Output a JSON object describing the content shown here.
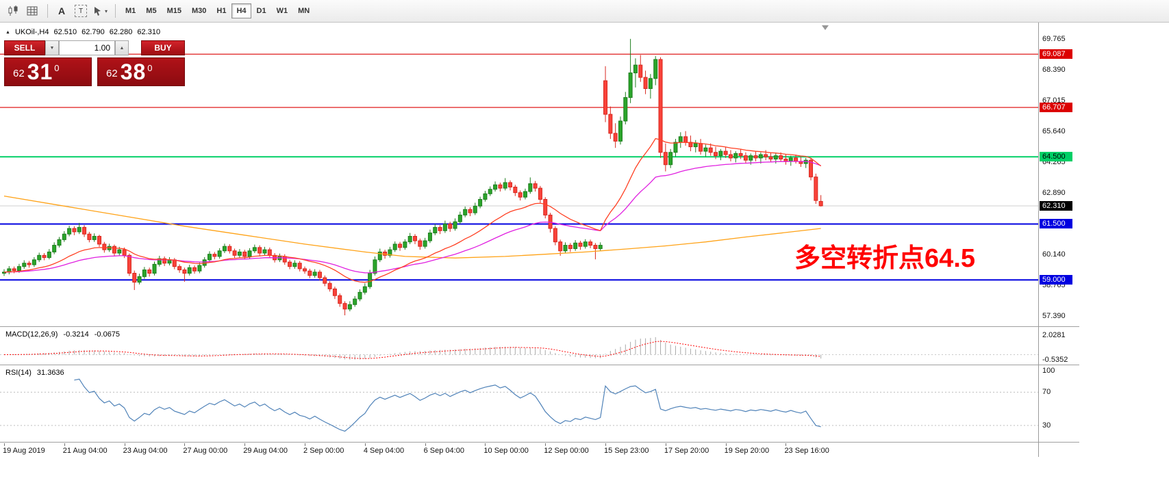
{
  "toolbar": {
    "icons": [
      "chart-type-icon",
      "grid-icon",
      "text-annotation-icon",
      "text-box-icon",
      "cursor-tools-icon"
    ],
    "icon_a": "A",
    "icon_t": "T",
    "cursor_caret": "▾",
    "timeframes": [
      "M1",
      "M5",
      "M15",
      "M30",
      "H1",
      "H4",
      "D1",
      "W1",
      "MN"
    ],
    "active_timeframe": "H4"
  },
  "chart": {
    "symbol_header": "UKOil-,H4",
    "symbol_marker": "▲",
    "ohlc": {
      "open": "62.510",
      "high": "62.790",
      "low": "62.280",
      "close": "62.310"
    },
    "annotation": "多空转折点64.5",
    "trade_panel": {
      "sell_label": "SELL",
      "buy_label": "BUY",
      "volume": "1.00",
      "volume_down_glyph": "▼",
      "volume_up_glyph": "▲",
      "sell_price_small": "62",
      "sell_price_big": "31",
      "sell_price_sup": "0",
      "buy_price_small": "62",
      "buy_price_big": "38",
      "buy_price_sup": "0"
    }
  },
  "indicators_text": {
    "macd_label": "MACD(12,26,9)",
    "macd_value_main": "-0.3214",
    "macd_value_signal": "-0.0675",
    "rsi_label": "RSI(14)",
    "rsi_value": "31.3636"
  },
  "chart_data": {
    "type": "candlestick",
    "symbol": "UKOil-",
    "timeframe": "H4",
    "colors": {
      "up": "#2aa52a",
      "up_border": "#1e7e1e",
      "down": "#f9423a",
      "down_border": "#d8281e"
    },
    "price_axis": {
      "ticks": [
        69.765,
        68.39,
        67.015,
        65.64,
        64.265,
        62.89,
        61.515,
        60.14,
        58.765,
        57.39
      ],
      "decimals": 3
    },
    "levels": [
      {
        "price": 69.087,
        "color": "#dc0000",
        "width": 1.2,
        "label": "69.087",
        "label_bg": "#dc0000",
        "label_fg": "#ffffff"
      },
      {
        "price": 66.707,
        "color": "#dc0000",
        "width": 1.2,
        "label": "66.707",
        "label_bg": "#dc0000",
        "label_fg": "#ffffff"
      },
      {
        "price": 64.5,
        "color": "#00cf66",
        "width": 2,
        "label": "64.500",
        "label_bg": "#00cf66",
        "label_fg": "#000000"
      },
      {
        "price": 61.5,
        "color": "#0000e0",
        "width": 2,
        "label": "61.500",
        "label_bg": "#0000e0",
        "label_fg": "#ffffff"
      },
      {
        "price": 59.0,
        "color": "#0000e0",
        "width": 2,
        "label": "59.000",
        "label_bg": "#0000e0",
        "label_fg": "#ffffff"
      }
    ],
    "current_price": {
      "value": 62.31,
      "label": "62.310",
      "label_bg": "#000000",
      "label_fg": "#ffffff"
    },
    "moving_averages": [
      {
        "name": "slow-ma-orange",
        "method": "points",
        "color": "#ffa216",
        "points": [
          [
            0,
            62.75
          ],
          [
            12,
            62.3
          ],
          [
            24,
            61.85
          ],
          [
            36,
            61.4
          ],
          [
            48,
            61.0
          ],
          [
            60,
            60.6
          ],
          [
            72,
            60.25
          ],
          [
            80,
            60.05
          ],
          [
            90,
            59.98
          ],
          [
            100,
            60.05
          ],
          [
            108,
            60.15
          ],
          [
            116,
            60.25
          ],
          [
            124,
            60.38
          ],
          [
            132,
            60.52
          ],
          [
            140,
            60.7
          ],
          [
            148,
            60.92
          ],
          [
            156,
            61.12
          ],
          [
            163,
            61.3
          ]
        ]
      },
      {
        "name": "medium-ma-magenta",
        "method": "ema",
        "period": 45,
        "color": "#e01fe0"
      },
      {
        "name": "fast-ma-red",
        "method": "ema",
        "period": 21,
        "color": "#ff4023"
      }
    ],
    "candles": [
      [
        59.3,
        59.48,
        59.18,
        59.35
      ],
      [
        59.35,
        59.62,
        59.25,
        59.5
      ],
      [
        59.5,
        59.6,
        59.3,
        59.42
      ],
      [
        59.42,
        59.72,
        59.32,
        59.6
      ],
      [
        59.6,
        59.88,
        59.5,
        59.75
      ],
      [
        59.75,
        59.85,
        59.55,
        59.68
      ],
      [
        59.68,
        60.02,
        59.58,
        59.9
      ],
      [
        59.9,
        60.22,
        59.8,
        60.1
      ],
      [
        60.1,
        60.2,
        59.88,
        60.0
      ],
      [
        60.0,
        60.38,
        59.92,
        60.25
      ],
      [
        60.25,
        60.68,
        60.15,
        60.55
      ],
      [
        60.55,
        60.92,
        60.45,
        60.8
      ],
      [
        60.8,
        61.18,
        60.7,
        61.05
      ],
      [
        61.05,
        61.42,
        60.95,
        61.3
      ],
      [
        61.3,
        61.4,
        61.0,
        61.15
      ],
      [
        61.15,
        61.55,
        61.05,
        61.35
      ],
      [
        61.35,
        61.45,
        60.92,
        61.05
      ],
      [
        61.05,
        61.15,
        60.68,
        60.8
      ],
      [
        60.8,
        61.08,
        60.7,
        60.95
      ],
      [
        60.95,
        61.02,
        60.48,
        60.6
      ],
      [
        60.6,
        60.7,
        60.22,
        60.35
      ],
      [
        60.35,
        60.62,
        60.25,
        60.5
      ],
      [
        60.5,
        60.58,
        60.08,
        60.2
      ],
      [
        60.2,
        60.48,
        60.1,
        60.35
      ],
      [
        60.35,
        60.45,
        59.98,
        60.1
      ],
      [
        60.1,
        60.18,
        59.18,
        59.3
      ],
      [
        59.3,
        59.42,
        58.55,
        58.9
      ],
      [
        58.9,
        59.28,
        58.8,
        59.15
      ],
      [
        59.15,
        59.58,
        59.05,
        59.45
      ],
      [
        59.45,
        59.55,
        59.15,
        59.3
      ],
      [
        59.3,
        59.82,
        59.2,
        59.7
      ],
      [
        59.7,
        60.08,
        59.6,
        59.95
      ],
      [
        59.95,
        60.05,
        59.62,
        59.75
      ],
      [
        59.75,
        60.02,
        59.65,
        59.9
      ],
      [
        59.9,
        59.98,
        59.48,
        59.6
      ],
      [
        59.6,
        59.7,
        59.32,
        59.45
      ],
      [
        59.45,
        59.55,
        58.92,
        59.3
      ],
      [
        59.3,
        59.68,
        59.2,
        59.55
      ],
      [
        59.55,
        59.65,
        59.28,
        59.4
      ],
      [
        59.4,
        59.78,
        59.3,
        59.65
      ],
      [
        59.65,
        60.02,
        59.55,
        59.9
      ],
      [
        59.9,
        60.28,
        59.8,
        60.15
      ],
      [
        60.15,
        60.25,
        59.92,
        60.05
      ],
      [
        60.05,
        60.42,
        59.95,
        60.3
      ],
      [
        60.3,
        60.62,
        60.2,
        60.5
      ],
      [
        60.5,
        60.6,
        60.18,
        60.3
      ],
      [
        60.3,
        60.4,
        59.98,
        60.1
      ],
      [
        60.1,
        60.38,
        60.0,
        60.25
      ],
      [
        60.25,
        60.35,
        59.92,
        60.05
      ],
      [
        60.05,
        60.42,
        59.95,
        60.3
      ],
      [
        60.3,
        60.58,
        60.2,
        60.45
      ],
      [
        60.45,
        60.55,
        60.08,
        60.2
      ],
      [
        60.2,
        60.48,
        60.1,
        60.35
      ],
      [
        60.35,
        60.45,
        59.98,
        60.1
      ],
      [
        60.1,
        60.2,
        59.78,
        59.9
      ],
      [
        59.9,
        60.18,
        59.8,
        60.05
      ],
      [
        60.05,
        60.15,
        59.68,
        59.8
      ],
      [
        59.8,
        59.9,
        59.48,
        59.6
      ],
      [
        59.6,
        59.88,
        59.5,
        59.75
      ],
      [
        59.75,
        59.85,
        59.38,
        59.5
      ],
      [
        59.5,
        59.6,
        59.28,
        59.4
      ],
      [
        59.4,
        59.5,
        59.08,
        59.2
      ],
      [
        59.2,
        59.48,
        59.1,
        59.35
      ],
      [
        59.35,
        59.45,
        58.98,
        59.1
      ],
      [
        59.1,
        59.2,
        58.72,
        58.85
      ],
      [
        58.85,
        58.95,
        58.48,
        58.6
      ],
      [
        58.6,
        58.7,
        58.15,
        58.3
      ],
      [
        58.3,
        58.4,
        57.8,
        57.95
      ],
      [
        57.95,
        58.05,
        57.42,
        57.7
      ],
      [
        57.7,
        58.05,
        57.6,
        57.9
      ],
      [
        57.9,
        58.28,
        57.8,
        58.15
      ],
      [
        58.15,
        58.58,
        58.05,
        58.45
      ],
      [
        58.45,
        58.85,
        58.35,
        58.7
      ],
      [
        58.7,
        59.45,
        58.6,
        59.3
      ],
      [
        59.3,
        60.05,
        59.2,
        59.9
      ],
      [
        59.9,
        60.4,
        59.8,
        60.25
      ],
      [
        60.25,
        60.35,
        59.95,
        60.1
      ],
      [
        60.1,
        60.48,
        60.0,
        60.35
      ],
      [
        60.35,
        60.72,
        60.25,
        60.6
      ],
      [
        60.6,
        60.7,
        60.3,
        60.45
      ],
      [
        60.45,
        60.82,
        60.35,
        60.7
      ],
      [
        60.7,
        61.1,
        60.6,
        60.95
      ],
      [
        60.95,
        61.05,
        60.6,
        60.75
      ],
      [
        60.75,
        60.85,
        60.35,
        60.5
      ],
      [
        60.5,
        60.88,
        60.4,
        60.75
      ],
      [
        60.75,
        61.25,
        60.65,
        61.1
      ],
      [
        61.1,
        61.5,
        61.0,
        61.35
      ],
      [
        61.35,
        61.45,
        61.05,
        61.2
      ],
      [
        61.2,
        61.65,
        61.1,
        61.5
      ],
      [
        61.5,
        61.6,
        61.15,
        61.3
      ],
      [
        61.3,
        61.75,
        61.2,
        61.6
      ],
      [
        61.6,
        62.05,
        61.5,
        61.9
      ],
      [
        61.9,
        62.28,
        61.8,
        62.15
      ],
      [
        62.15,
        62.25,
        61.85,
        62.0
      ],
      [
        62.0,
        62.45,
        61.9,
        62.3
      ],
      [
        62.3,
        62.72,
        62.2,
        62.6
      ],
      [
        62.6,
        62.98,
        62.5,
        62.85
      ],
      [
        62.85,
        63.18,
        62.75,
        63.05
      ],
      [
        63.05,
        63.4,
        62.95,
        63.25
      ],
      [
        63.25,
        63.35,
        62.95,
        63.1
      ],
      [
        63.1,
        63.55,
        63.0,
        63.35
      ],
      [
        63.35,
        63.45,
        63.0,
        63.15
      ],
      [
        63.15,
        63.25,
        62.75,
        62.9
      ],
      [
        62.9,
        63.0,
        62.55,
        62.7
      ],
      [
        62.7,
        63.08,
        62.6,
        62.95
      ],
      [
        62.95,
        63.58,
        62.85,
        63.3
      ],
      [
        63.3,
        63.42,
        62.95,
        63.1
      ],
      [
        63.1,
        63.2,
        62.45,
        62.6
      ],
      [
        62.6,
        62.7,
        61.75,
        61.9
      ],
      [
        61.9,
        62.0,
        61.12,
        61.3
      ],
      [
        61.3,
        61.4,
        60.55,
        60.7
      ],
      [
        60.7,
        60.8,
        60.08,
        60.3
      ],
      [
        60.3,
        60.68,
        60.2,
        60.55
      ],
      [
        60.55,
        60.65,
        60.25,
        60.4
      ],
      [
        60.4,
        60.78,
        60.3,
        60.65
      ],
      [
        60.65,
        60.75,
        60.35,
        60.5
      ],
      [
        60.5,
        60.82,
        60.4,
        60.7
      ],
      [
        60.7,
        60.8,
        60.42,
        60.55
      ],
      [
        60.55,
        60.65,
        59.92,
        60.4
      ],
      [
        60.4,
        60.68,
        60.3,
        60.55
      ],
      [
        67.9,
        68.55,
        66.05,
        66.4
      ],
      [
        66.4,
        66.75,
        65.3,
        65.55
      ],
      [
        65.55,
        66.0,
        64.9,
        65.2
      ],
      [
        65.2,
        66.3,
        65.05,
        66.1
      ],
      [
        66.1,
        67.4,
        65.95,
        67.15
      ],
      [
        67.15,
        69.77,
        66.9,
        68.25
      ],
      [
        68.25,
        68.9,
        67.6,
        68.6
      ],
      [
        68.6,
        69.05,
        67.85,
        68.05
      ],
      [
        68.05,
        68.35,
        67.3,
        67.55
      ],
      [
        67.55,
        68.2,
        67.1,
        68.0
      ],
      [
        68.0,
        69.0,
        67.7,
        68.85
      ],
      [
        68.85,
        68.95,
        64.45,
        64.7
      ],
      [
        64.7,
        65.1,
        63.85,
        64.15
      ],
      [
        64.15,
        64.85,
        64.0,
        64.7
      ],
      [
        64.7,
        65.3,
        64.5,
        65.15
      ],
      [
        65.15,
        65.6,
        64.9,
        65.4
      ],
      [
        65.4,
        65.65,
        65.0,
        65.15
      ],
      [
        65.15,
        65.45,
        64.75,
        64.95
      ],
      [
        64.95,
        65.25,
        64.7,
        65.1
      ],
      [
        65.1,
        65.3,
        64.6,
        64.75
      ],
      [
        64.75,
        65.05,
        64.5,
        64.9
      ],
      [
        64.9,
        65.1,
        64.55,
        64.7
      ],
      [
        64.7,
        64.95,
        64.4,
        64.55
      ],
      [
        64.55,
        64.85,
        64.35,
        64.75
      ],
      [
        64.75,
        64.95,
        64.45,
        64.6
      ],
      [
        64.6,
        64.8,
        64.3,
        64.45
      ],
      [
        64.45,
        64.75,
        64.25,
        64.65
      ],
      [
        64.65,
        64.85,
        64.4,
        64.55
      ],
      [
        64.55,
        64.7,
        64.2,
        64.35
      ],
      [
        64.35,
        64.65,
        64.15,
        64.55
      ],
      [
        64.55,
        64.75,
        64.3,
        64.45
      ],
      [
        64.45,
        64.7,
        64.2,
        64.6
      ],
      [
        64.6,
        64.8,
        64.35,
        64.5
      ],
      [
        64.5,
        64.7,
        64.25,
        64.4
      ],
      [
        64.4,
        64.65,
        64.2,
        64.55
      ],
      [
        64.55,
        64.7,
        64.3,
        64.4
      ],
      [
        64.4,
        64.6,
        64.15,
        64.3
      ],
      [
        64.3,
        64.55,
        64.1,
        64.45
      ],
      [
        64.45,
        64.6,
        64.2,
        64.3
      ],
      [
        64.3,
        64.5,
        64.05,
        64.2
      ],
      [
        64.2,
        64.45,
        64.0,
        64.35
      ],
      [
        64.35,
        64.45,
        63.45,
        63.6
      ],
      [
        63.6,
        63.75,
        62.4,
        62.55
      ],
      [
        62.51,
        62.79,
        62.28,
        62.31
      ]
    ],
    "time_labels": [
      {
        "index": 0,
        "text": "19 Aug 2019"
      },
      {
        "index": 12,
        "text": "21 Aug 04:00"
      },
      {
        "index": 24,
        "text": "23 Aug 04:00"
      },
      {
        "index": 36,
        "text": "27 Aug 00:00"
      },
      {
        "index": 48,
        "text": "29 Aug 04:00"
      },
      {
        "index": 60,
        "text": "2 Sep 00:00"
      },
      {
        "index": 72,
        "text": "4 Sep 04:00"
      },
      {
        "index": 84,
        "text": "6 Sep 04:00"
      },
      {
        "index": 96,
        "text": "10 Sep 00:00"
      },
      {
        "index": 108,
        "text": "12 Sep 00:00"
      },
      {
        "index": 120,
        "text": "15 Sep 23:00"
      },
      {
        "index": 132,
        "text": "17 Sep 20:00"
      },
      {
        "index": 144,
        "text": "19 Sep 20:00"
      },
      {
        "index": 156,
        "text": "23 Sep 16:00"
      }
    ],
    "indicators": {
      "macd": {
        "fast": 12,
        "slow": 26,
        "signal": 9,
        "histogram_color": "#a9a9a9",
        "signal_color": "#ff0000",
        "scale": [
          {
            "value": 2.0281,
            "text": "2.0281"
          },
          {
            "value": -0.5352,
            "text": "-0.5352"
          }
        ]
      },
      "rsi": {
        "period": 14,
        "color": "#4f82b8",
        "level_lines": [
          70,
          30
        ],
        "scale": [
          {
            "value": 100,
            "text": "100"
          },
          {
            "value": 70,
            "text": "70"
          },
          {
            "value": 30,
            "text": "30"
          }
        ]
      }
    }
  }
}
